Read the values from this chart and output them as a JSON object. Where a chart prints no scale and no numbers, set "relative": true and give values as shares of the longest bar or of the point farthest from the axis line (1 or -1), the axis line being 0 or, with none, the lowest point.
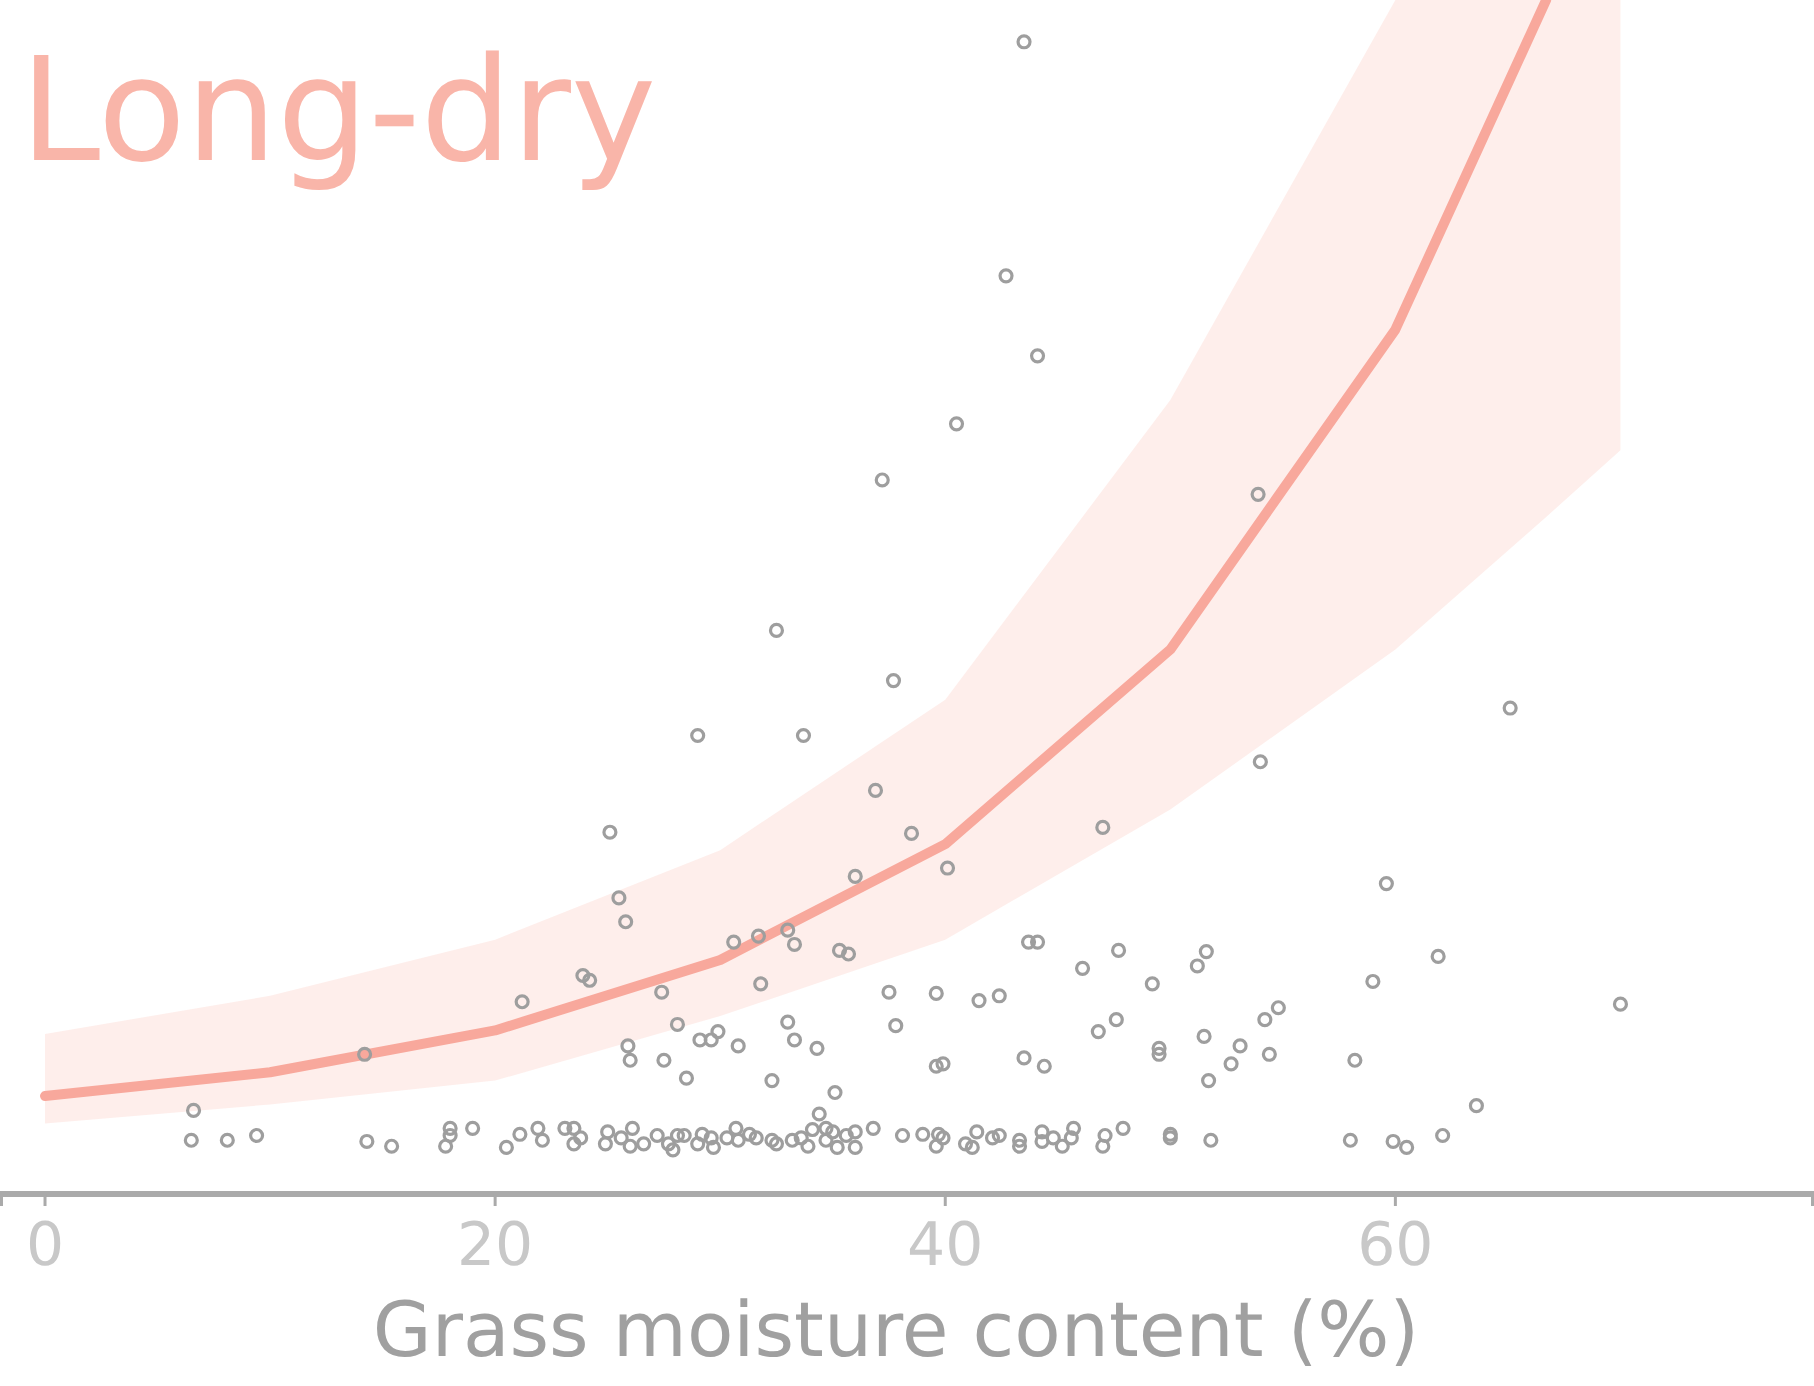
{
  "chart_data": {
    "type": "scatter",
    "title": "Long-dry",
    "xlabel": "Grass moisture content (%)",
    "relative": true,
    "xlim": [
      -2,
      78.6
    ],
    "xticks": [
      0,
      20,
      40,
      60
    ],
    "tick_labels": "x",
    "grid": false,
    "series": [
      {
        "marker": "circle",
        "color": "#9e9e9e",
        "x": [
          37.7,
          29.0,
          33.7,
          36.9,
          25.1,
          38.5,
          36.0,
          25.5,
          25.8,
          30.6,
          31.7,
          33.0,
          33.3,
          35.3,
          35.7,
          23.9,
          24.2,
          21.2,
          27.4,
          31.8,
          37.5,
          28.1,
          33.0,
          37.8,
          29.1,
          29.6,
          29.9,
          33.3,
          25.9,
          30.8,
          34.3,
          26.0,
          27.5,
          14.2,
          28.5,
          32.3,
          35.1,
          6.6,
          34.4,
          6.5,
          8.1,
          9.4,
          14.3,
          15.4,
          17.8,
          18.0,
          18.0,
          19.0,
          20.5,
          21.1,
          21.9,
          22.1,
          23.1,
          23.5,
          23.5,
          23.8,
          25.0,
          24.9,
          25.6,
          26.1,
          26.0,
          26.6,
          27.2,
          27.7,
          28.1,
          28.4,
          27.9,
          29.0,
          29.2,
          29.6,
          29.7,
          30.3,
          30.7,
          30.8,
          31.3,
          31.6,
          32.3,
          32.5,
          33.2,
          33.6,
          33.9,
          34.1,
          34.7,
          35.0,
          34.7,
          35.2,
          35.6,
          36.0,
          36.0,
          36.8,
          38.1,
          43.5,
          42.7,
          44.1,
          40.5,
          37.2,
          53.9,
          32.5,
          65.1,
          54.0,
          47.0,
          40.1,
          59.6,
          43.7,
          44.1,
          47.7,
          51.6,
          46.1,
          51.2,
          61.9,
          49.2,
          59.0,
          39.6,
          41.5,
          42.4,
          70.0,
          54.8,
          54.2,
          47.6,
          46.8,
          51.5,
          53.1,
          49.5,
          49.5,
          54.4,
          52.7,
          43.5,
          39.6,
          39.9,
          44.4,
          58.2,
          51.7,
          63.6,
          39.0,
          39.7,
          39.9,
          39.6,
          40.9,
          41.2,
          41.4,
          42.1,
          42.4,
          43.3,
          43.3,
          44.3,
          44.3,
          44.8,
          45.2,
          45.7,
          45.6,
          47.1,
          47.0,
          47.9,
          50.0,
          50.0,
          51.8,
          58.0,
          59.9,
          60.5,
          62.1
        ],
        "values": [
          0.43,
          0.384,
          0.384,
          0.338,
          0.303,
          0.302,
          0.266,
          0.248,
          0.228,
          0.211,
          0.216,
          0.221,
          0.209,
          0.204,
          0.201,
          0.183,
          0.179,
          0.161,
          0.169,
          0.176,
          0.169,
          0.142,
          0.144,
          0.141,
          0.129,
          0.129,
          0.136,
          0.129,
          0.124,
          0.124,
          0.122,
          0.112,
          0.112,
          0.117,
          0.097,
          0.095,
          0.085,
          0.07,
          0.067,
          0.045,
          0.045,
          0.049,
          0.044,
          0.04,
          0.04,
          0.049,
          0.055,
          0.055,
          0.039,
          0.05,
          0.055,
          0.045,
          0.055,
          0.055,
          0.042,
          0.047,
          0.052,
          0.042,
          0.047,
          0.055,
          0.04,
          0.042,
          0.049,
          0.042,
          0.049,
          0.049,
          0.037,
          0.042,
          0.05,
          0.047,
          0.039,
          0.047,
          0.055,
          0.045,
          0.05,
          0.047,
          0.045,
          0.042,
          0.045,
          0.047,
          0.04,
          0.054,
          0.055,
          0.052,
          0.045,
          0.039,
          0.049,
          0.052,
          0.039,
          0.055,
          0.049,
          0.965,
          0.769,
          0.702,
          0.645,
          0.598,
          0.586,
          0.472,
          0.407,
          0.362,
          0.307,
          0.273,
          0.26,
          0.211,
          0.211,
          0.204,
          0.203,
          0.189,
          0.191,
          0.199,
          0.176,
          0.178,
          0.168,
          0.162,
          0.166,
          0.159,
          0.156,
          0.146,
          0.146,
          0.136,
          0.132,
          0.124,
          0.122,
          0.117,
          0.117,
          0.109,
          0.114,
          0.107,
          0.109,
          0.107,
          0.112,
          0.095,
          0.074,
          0.05,
          0.05,
          0.047,
          0.04,
          0.042,
          0.039,
          0.052,
          0.047,
          0.049,
          0.045,
          0.04,
          0.052,
          0.044,
          0.047,
          0.04,
          0.055,
          0.047,
          0.049,
          0.04,
          0.055,
          0.05,
          0.047,
          0.045,
          0.045,
          0.044,
          0.039,
          0.049
        ]
      },
      {
        "type": "line",
        "color": "#f8a89c",
        "x": [
          0,
          10,
          20,
          30,
          40,
          50,
          60,
          66.7,
          70
        ],
        "values": [
          0.082,
          0.102,
          0.137,
          0.196,
          0.293,
          0.456,
          0.724,
          1.0,
          null
        ],
        "lower": [
          0.059,
          0.075,
          0.095,
          0.149,
          0.213,
          0.322,
          0.456,
          0.567,
          0.623
        ],
        "upper": [
          0.134,
          0.166,
          0.213,
          0.288,
          0.414,
          0.665,
          1.0,
          1.0,
          1.0
        ]
      }
    ]
  }
}
